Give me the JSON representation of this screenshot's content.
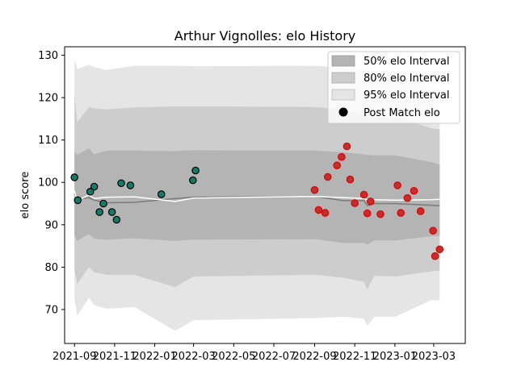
{
  "chart_data": {
    "type": "scatter",
    "title": "Arthur Vignolles: elo History",
    "xlabel": "",
    "ylabel": "elo score",
    "xlim": [
      "2021-08-17",
      "2023-04-18"
    ],
    "ylim": [
      62,
      132
    ],
    "grid": false,
    "legend_position": "top-right",
    "x_ticks": [
      "2021-09-01",
      "2021-11-01",
      "2022-01-01",
      "2022-03-01",
      "2022-05-01",
      "2022-07-01",
      "2022-09-01",
      "2022-11-01",
      "2023-01-01",
      "2023-03-01"
    ],
    "x_tick_labels": [
      "2021-09",
      "2021-11",
      "2022-01",
      "2022-03",
      "2022-05",
      "2022-07",
      "2022-09",
      "2022-11",
      "2023-01",
      "2023-03"
    ],
    "y_ticks": [
      70,
      80,
      90,
      100,
      110,
      120,
      130
    ],
    "legend": {
      "band50_label": "50% elo Interval",
      "band80_label": "80% elo Interval",
      "band95_label": "95% elo Interval",
      "points_label": "Post Match elo"
    },
    "colors": {
      "band50": "#b4b4b4",
      "band80": "#cdcdcd",
      "band95": "#e5e5e5",
      "median_line": "#7a7a7a",
      "mean_line": "#ffffff",
      "point_fill_season1": "#147a6a",
      "point_edge_season1": "#000000",
      "point_fill_season2": "#c03030",
      "point_edge_season2": "#e00000"
    },
    "bands": {
      "dates": [
        "2021-09-01",
        "2021-09-05",
        "2021-09-23",
        "2021-10-01",
        "2021-10-20",
        "2021-12-01",
        "2022-02-01",
        "2022-03-01",
        "2022-09-01",
        "2022-10-15",
        "2022-11-15",
        "2022-11-20",
        "2022-12-01",
        "2023-01-01",
        "2023-02-25",
        "2023-03-10"
      ],
      "p50_low": [
        87.5,
        86.2,
        87.8,
        86.7,
        86.5,
        86.8,
        86.2,
        86.5,
        86.6,
        85.7,
        85.7,
        85.3,
        86.3,
        86.3,
        87.3,
        87.4
      ],
      "p50_high": [
        107.2,
        106.5,
        108,
        106.6,
        107.5,
        107.5,
        107.4,
        107.6,
        107.5,
        107.1,
        106.6,
        106.5,
        106.4,
        106.4,
        104.8,
        104.2
      ],
      "p80_low": [
        79.5,
        76,
        80,
        78.8,
        78.2,
        78.2,
        75.3,
        77.8,
        78.2,
        77.5,
        76.5,
        74.8,
        78,
        77.8,
        79,
        79.2
      ],
      "p80_high": [
        120.8,
        114.2,
        117.7,
        117.5,
        117.2,
        117.7,
        117.9,
        117.9,
        117.8,
        117.2,
        116.2,
        116,
        115.2,
        115.5,
        112.8,
        112.5
      ],
      "p95_low": [
        72.5,
        68.5,
        72.8,
        71,
        70.2,
        70.6,
        65,
        67.5,
        68,
        68.3,
        67.8,
        66.2,
        68.3,
        68.3,
        72.2,
        72.2
      ],
      "p95_high": [
        129.2,
        126.7,
        127.8,
        127.2,
        126.5,
        127.5,
        127.5,
        127.4,
        127.5,
        127,
        126.5,
        126.5,
        124.8,
        126,
        121.8,
        122.2
      ],
      "median": [
        97.4,
        96,
        96.4,
        95.8,
        95.2,
        95.3,
        96.2,
        96.5,
        96.7,
        95.7,
        95.7,
        94.5,
        95,
        95,
        94.6,
        94.5
      ],
      "mean": [
        98,
        95.7,
        97,
        96.2,
        96.5,
        96.6,
        95.5,
        96.3,
        96.7,
        96.4,
        96.2,
        95.9,
        95.9,
        95.8,
        95.9,
        96
      ]
    },
    "series": [
      {
        "group": "season1",
        "dates": [
          "2021-09-01",
          "2021-09-06",
          "2021-09-25",
          "2021-10-01",
          "2021-10-09",
          "2021-10-15",
          "2021-10-28",
          "2021-11-04",
          "2021-11-11",
          "2021-11-25",
          "2022-01-11",
          "2022-02-28",
          "2022-03-04"
        ],
        "values": [
          101.2,
          95.8,
          97.8,
          99,
          93,
          95,
          93,
          91.2,
          99.8,
          99.3,
          97.2,
          100.5,
          102.8
        ]
      },
      {
        "group": "season2",
        "dates": [
          "2022-09-01",
          "2022-09-07",
          "2022-09-17",
          "2022-09-21",
          "2022-10-05",
          "2022-10-12",
          "2022-10-20",
          "2022-10-25",
          "2022-11-01",
          "2022-11-15",
          "2022-11-20",
          "2022-11-25",
          "2022-12-10",
          "2023-01-05",
          "2023-01-10",
          "2023-01-20",
          "2023-01-30",
          "2023-02-09",
          "2023-02-28",
          "2023-03-03",
          "2023-03-10"
        ],
        "values": [
          98.2,
          93.5,
          92.8,
          101.3,
          104,
          106,
          108.5,
          100.7,
          95.1,
          97.1,
          92.7,
          95.5,
          92.5,
          99.3,
          92.8,
          96.3,
          98,
          93.2,
          88.6,
          82.6,
          84.2
        ]
      }
    ]
  }
}
